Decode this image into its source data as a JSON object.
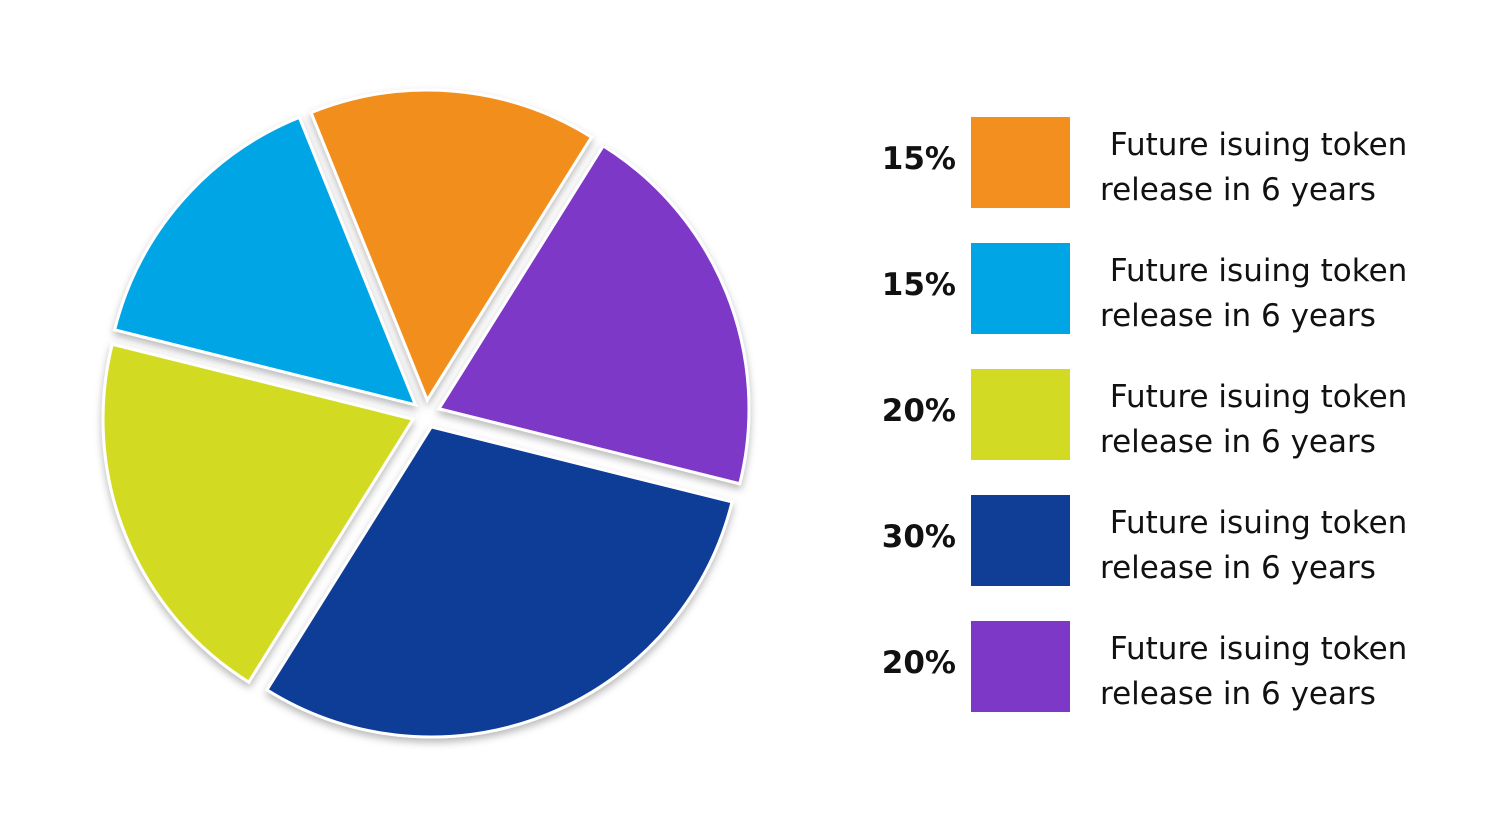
{
  "chart_data": {
    "type": "pie",
    "slices": [
      {
        "value": 15,
        "label": "15%",
        "description": " Future isuing token\nrelease in 6 years",
        "color": "#F28F1F"
      },
      {
        "value": 15,
        "label": "15%",
        "description": " Future isuing token\nrelease in 6 years",
        "color": "#00A5E6"
      },
      {
        "value": 20,
        "label": "20%",
        "description": " Future isuing token\nrelease in 6 years",
        "color": "#D2DA23"
      },
      {
        "value": 30,
        "label": "30%",
        "description": " Future isuing token\nrelease in 6 years",
        "color": "#103E96"
      },
      {
        "value": 20,
        "label": "20%",
        "description": " Future isuing token\nrelease in 6 years",
        "color": "#7E38C8"
      }
    ],
    "legend_position": "right"
  }
}
